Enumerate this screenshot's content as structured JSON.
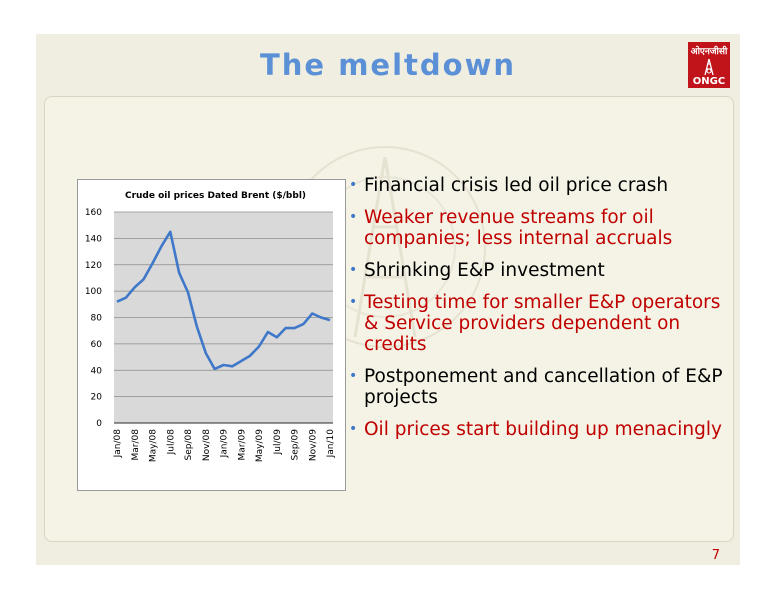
{
  "slide": {
    "title": "The meltdown",
    "page_number": "7",
    "logo": {
      "hindi_text": "ओएनजीसी",
      "text": "ONGC",
      "color": "#c0131a"
    },
    "title_color": "#5b8fd6"
  },
  "bullets": [
    {
      "text": "Financial crisis led oil price crash",
      "color": "#000000"
    },
    {
      "text": "Weaker revenue streams for oil companies; less internal accruals",
      "color": "#c00000"
    },
    {
      "text": "Shrinking E&P investment",
      "color": "#000000"
    },
    {
      "text": "Testing time for smaller E&P operators & Service providers dependent on credits",
      "color": "#c00000"
    },
    {
      "text": "Postponement and cancellation of E&P projects",
      "color": "#000000"
    },
    {
      "text": "Oil prices start building up menacingly",
      "color": "#c00000"
    }
  ],
  "chart_data": {
    "type": "line",
    "title": "Crude oil prices Dated Brent ($/bbl)",
    "xlabel": "",
    "ylabel": "",
    "ylim": [
      0,
      160
    ],
    "yticks": [
      0,
      20,
      40,
      60,
      80,
      100,
      120,
      140,
      160
    ],
    "grid": true,
    "xtick_labels": [
      "Jan/08",
      "Mar/08",
      "May/08",
      "Jul/08",
      "Sep/08",
      "Nov/08",
      "Jan/09",
      "Mar/09",
      "May/09",
      "Jul/09",
      "Sep/09",
      "Nov/09",
      "Jan/10"
    ],
    "x": [
      "Jan/08",
      "Feb/08",
      "Mar/08",
      "Apr/08",
      "May/08",
      "Jun/08",
      "Jul/08",
      "Aug/08",
      "Sep/08",
      "Oct/08",
      "Nov/08",
      "Dec/08",
      "Jan/09",
      "Feb/09",
      "Mar/09",
      "Apr/09",
      "May/09",
      "Jun/09",
      "Jul/09",
      "Aug/09",
      "Sep/09",
      "Oct/09",
      "Nov/09",
      "Dec/09",
      "Jan/10"
    ],
    "series": [
      {
        "values": [
          92,
          95,
          103,
          109,
          121,
          134,
          145,
          114,
          99,
          73,
          53,
          41,
          44,
          43,
          47,
          51,
          58,
          69,
          65,
          72,
          72,
          75,
          83,
          80,
          78
        ],
        "color": "#3f78c9"
      }
    ]
  }
}
